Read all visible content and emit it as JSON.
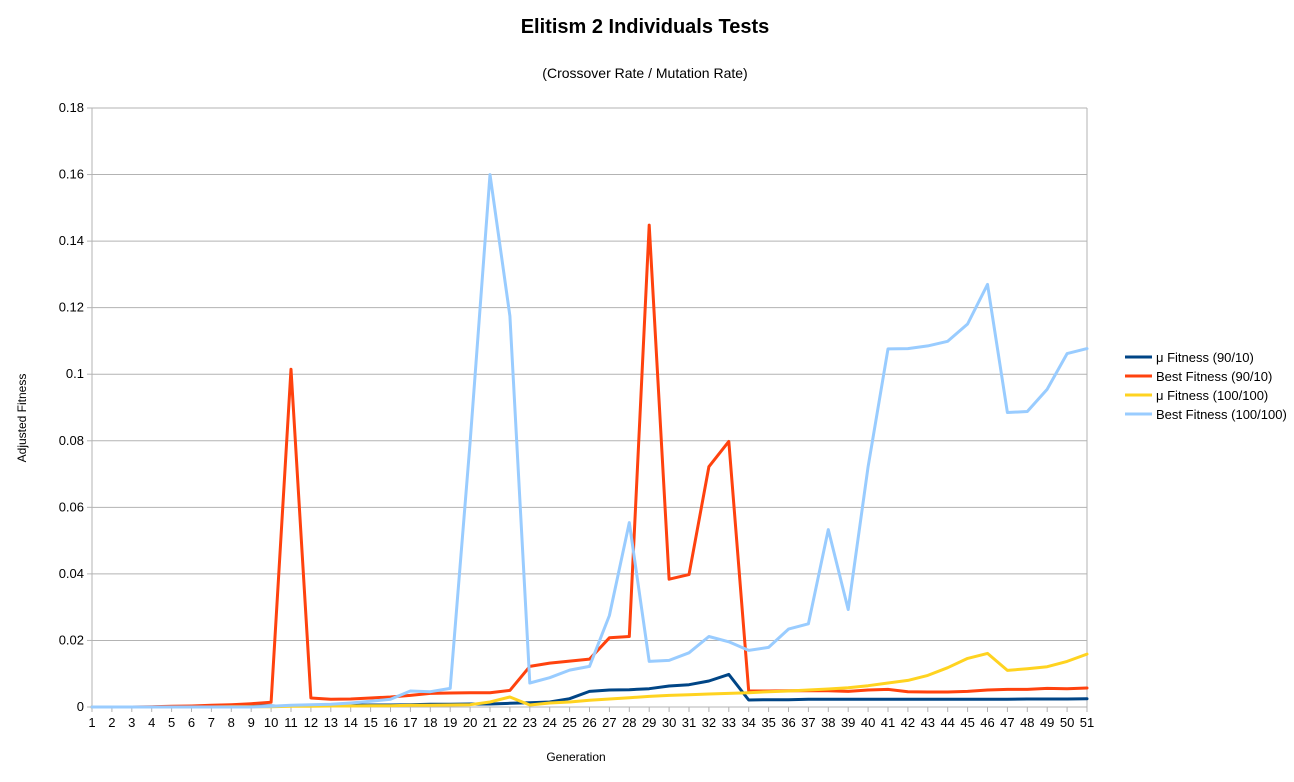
{
  "chart_data": {
    "type": "line",
    "title": "Elitism 2 Individuals Tests",
    "subtitle": "(Crossover Rate / Mutation Rate)",
    "xlabel": "Generation",
    "ylabel": "Adjusted Fitness",
    "x": [
      1,
      2,
      3,
      4,
      5,
      6,
      7,
      8,
      9,
      10,
      11,
      12,
      13,
      14,
      15,
      16,
      17,
      18,
      19,
      20,
      21,
      22,
      23,
      24,
      25,
      26,
      27,
      28,
      29,
      30,
      31,
      32,
      33,
      34,
      35,
      36,
      37,
      38,
      39,
      40,
      41,
      42,
      43,
      44,
      45,
      46,
      47,
      48,
      49,
      50,
      51
    ],
    "ylim": [
      0,
      0.18
    ],
    "yticks": [
      0,
      0.02,
      0.04,
      0.06,
      0.08,
      0.1,
      0.12,
      0.14,
      0.16,
      0.18
    ],
    "ytick_labels": [
      "0",
      "0.02",
      "0.04",
      "0.06",
      "0.08",
      "0.1",
      "0.12",
      "0.14",
      "0.16",
      "0.18"
    ],
    "grid": "horizontal",
    "legend_position": "right",
    "series": [
      {
        "name": "μ Fitness (90/10)",
        "color": "#004586",
        "values": [
          0,
          0,
          0,
          0,
          0.0001,
          0.0001,
          0.0002,
          0.0002,
          0.0002,
          0.0003,
          0.0003,
          0.0004,
          0.0005,
          0.0005,
          0.0006,
          0.0006,
          0.0007,
          0.0008,
          0.0008,
          0.0009,
          0.0009,
          0.0011,
          0.0013,
          0.0015,
          0.0025,
          0.0047,
          0.0051,
          0.0052,
          0.0055,
          0.0063,
          0.0067,
          0.0078,
          0.0098,
          0.0021,
          0.0022,
          0.0022,
          0.0023,
          0.0023,
          0.0023,
          0.0023,
          0.0023,
          0.0023,
          0.0023,
          0.0023,
          0.0023,
          0.0023,
          0.0023,
          0.0024,
          0.0024,
          0.0024,
          0.0025
        ]
      },
      {
        "name": "Best Fitness (90/10)",
        "color": "#ff420e",
        "values": [
          0,
          0,
          0,
          0.0001,
          0.0002,
          0.0003,
          0.0005,
          0.0007,
          0.001,
          0.0014,
          0.1015,
          0.0027,
          0.0023,
          0.0024,
          0.0027,
          0.003,
          0.0035,
          0.0041,
          0.0042,
          0.0043,
          0.0043,
          0.005,
          0.0122,
          0.0132,
          0.0138,
          0.0144,
          0.0208,
          0.0212,
          0.1448,
          0.0384,
          0.0398,
          0.0722,
          0.0798,
          0.0048,
          0.0048,
          0.0049,
          0.0049,
          0.0049,
          0.0047,
          0.0051,
          0.0053,
          0.0046,
          0.0045,
          0.0045,
          0.0047,
          0.0051,
          0.0053,
          0.0053,
          0.0056,
          0.0055,
          0.0057
        ]
      },
      {
        "name": "μ Fitness (100/100)",
        "color": "#ffd320",
        "values": [
          0,
          0,
          0,
          0,
          0,
          0,
          0,
          0.0001,
          0.0001,
          0.0001,
          0.0002,
          0.0002,
          0.0003,
          0.0003,
          0.0004,
          0.0004,
          0.0005,
          0.0005,
          0.0006,
          0.0007,
          0.0015,
          0.003,
          0.0006,
          0.0012,
          0.0015,
          0.002,
          0.0024,
          0.0028,
          0.0032,
          0.0035,
          0.0037,
          0.0039,
          0.0041,
          0.0043,
          0.0046,
          0.0048,
          0.0051,
          0.0054,
          0.0058,
          0.0064,
          0.0072,
          0.008,
          0.0095,
          0.0118,
          0.0146,
          0.0161,
          0.011,
          0.0115,
          0.0121,
          0.0137,
          0.0159
        ]
      },
      {
        "name": "Best Fitness (100/100)",
        "color": "#99ccff",
        "values": [
          0,
          0,
          0,
          0,
          0,
          0,
          0,
          0,
          0,
          0.0002,
          0.0005,
          0.0007,
          0.0008,
          0.0012,
          0.0017,
          0.0023,
          0.0048,
          0.0046,
          0.0056,
          0.0795,
          0.16,
          0.1175,
          0.0072,
          0.0088,
          0.0111,
          0.0122,
          0.0275,
          0.0554,
          0.0137,
          0.014,
          0.0163,
          0.0212,
          0.0196,
          0.017,
          0.0179,
          0.0234,
          0.025,
          0.0533,
          0.0293,
          0.0722,
          0.1076,
          0.1077,
          0.1085,
          0.1099,
          0.1151,
          0.127,
          0.0885,
          0.0888,
          0.0955,
          0.1062,
          0.1077
        ]
      }
    ]
  }
}
